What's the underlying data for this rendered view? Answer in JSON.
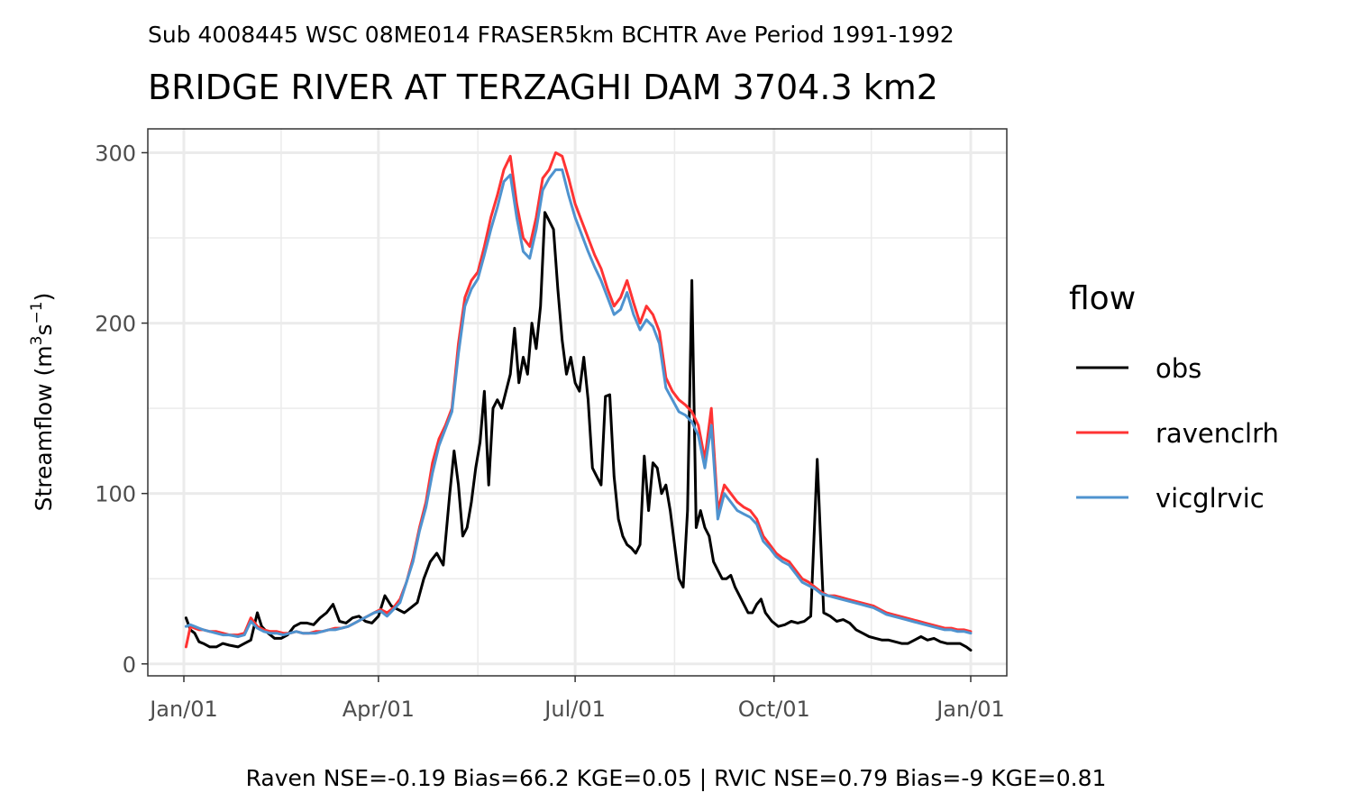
{
  "chart_data": {
    "type": "line",
    "subtitle": "Sub 4008445 WSC 08ME014 FRASER5km BCHTR Ave Period 1991-1992",
    "title": "BRIDGE RIVER AT TERZAGHI DAM 3704.3 km2",
    "ylabel_main": "Streamflow (m",
    "ylabel_sup1": "3",
    "ylabel_mid": "s",
    "ylabel_sup2": "−1",
    "ylabel_end": ")",
    "xlabel": "",
    "caption": "Raven NSE=-0.19 Bias=66.2 KGE=0.05 | RVIC NSE=0.79 Bias=-9 KGE=0.81",
    "x_type": "day_of_year",
    "xlim": [
      1,
      365
    ],
    "ylim": [
      -7,
      314
    ],
    "x_ticks": [
      {
        "label": "Jan/01",
        "day": 1
      },
      {
        "label": "Apr/01",
        "day": 91
      },
      {
        "label": "Jul/01",
        "day": 182
      },
      {
        "label": "Oct/01",
        "day": 274
      },
      {
        "label": "Jan/01",
        "day": 365
      }
    ],
    "x_minor_days": [
      46,
      137,
      228,
      319
    ],
    "y_ticks": [
      0,
      100,
      200,
      300
    ],
    "y_minor": [
      50,
      150,
      250
    ],
    "legend": {
      "title": "flow",
      "position": "right"
    },
    "grid": true,
    "series": [
      {
        "name": "obs",
        "color": "#000000",
        "x": [
          2,
          4,
          6,
          8,
          10,
          13,
          16,
          19,
          22,
          26,
          29,
          32,
          35,
          37,
          40,
          43,
          46,
          49,
          52,
          55,
          58,
          61,
          64,
          67,
          70,
          73,
          76,
          79,
          82,
          85,
          88,
          91,
          94,
          97,
          100,
          103,
          106,
          109,
          112,
          115,
          118,
          121,
          124,
          126,
          128,
          130,
          132,
          134,
          136,
          138,
          140,
          142,
          144,
          146,
          148,
          150,
          152,
          154,
          156,
          158,
          160,
          162,
          164,
          166,
          168,
          170,
          172,
          174,
          176,
          178,
          180,
          182,
          184,
          186,
          188,
          190,
          192,
          194,
          196,
          198,
          200,
          202,
          204,
          206,
          208,
          210,
          212,
          214,
          216,
          218,
          220,
          222,
          224,
          226,
          228,
          230,
          232,
          234,
          236,
          238,
          240,
          242,
          244,
          246,
          248,
          250,
          252,
          254,
          256,
          258,
          260,
          262,
          264,
          266,
          268,
          270,
          273,
          276,
          279,
          282,
          285,
          288,
          291,
          294,
          297,
          300,
          303,
          306,
          309,
          312,
          315,
          318,
          321,
          324,
          327,
          330,
          333,
          336,
          339,
          342,
          345,
          348,
          351,
          354,
          357,
          360,
          363,
          365
        ],
        "y": [
          27,
          20,
          18,
          13,
          12,
          10,
          10,
          12,
          11,
          10,
          12,
          14,
          30,
          22,
          18,
          15,
          15,
          17,
          22,
          24,
          24,
          23,
          27,
          30,
          35,
          25,
          24,
          27,
          28,
          25,
          24,
          28,
          40,
          34,
          32,
          30,
          33,
          36,
          50,
          60,
          65,
          58,
          100,
          125,
          105,
          75,
          80,
          95,
          115,
          130,
          160,
          105,
          150,
          155,
          150,
          160,
          170,
          197,
          165,
          180,
          170,
          200,
          185,
          210,
          265,
          260,
          255,
          220,
          190,
          170,
          180,
          165,
          160,
          180,
          155,
          115,
          110,
          105,
          157,
          158,
          110,
          85,
          75,
          70,
          68,
          65,
          70,
          122,
          90,
          118,
          115,
          100,
          105,
          90,
          70,
          50,
          45,
          90,
          225,
          80,
          90,
          80,
          75,
          60,
          55,
          50,
          50,
          52,
          45,
          40,
          35,
          30,
          30,
          35,
          38,
          30,
          25,
          22,
          23,
          25,
          24,
          25,
          28,
          120,
          30,
          28,
          25,
          26,
          24,
          20,
          18,
          16,
          15,
          14,
          14,
          13,
          12,
          12,
          14,
          16,
          14,
          15,
          13,
          12,
          12,
          12,
          10,
          8
        ]
      },
      {
        "name": "ravenclrh",
        "color": "#ff3333",
        "x": [
          2,
          4,
          6,
          8,
          10,
          13,
          16,
          19,
          22,
          26,
          29,
          32,
          35,
          38,
          41,
          44,
          47,
          50,
          53,
          56,
          59,
          62,
          65,
          68,
          71,
          74,
          77,
          80,
          83,
          86,
          89,
          92,
          95,
          98,
          101,
          104,
          107,
          110,
          113,
          116,
          119,
          122,
          125,
          128,
          131,
          134,
          137,
          140,
          143,
          146,
          149,
          152,
          155,
          158,
          161,
          164,
          167,
          170,
          173,
          176,
          179,
          182,
          185,
          188,
          191,
          194,
          197,
          200,
          203,
          206,
          209,
          212,
          215,
          218,
          221,
          224,
          227,
          230,
          233,
          236,
          239,
          242,
          245,
          248,
          251,
          254,
          257,
          260,
          263,
          266,
          269,
          272,
          275,
          278,
          281,
          284,
          287,
          290,
          293,
          296,
          299,
          302,
          305,
          308,
          311,
          314,
          317,
          320,
          323,
          326,
          329,
          332,
          335,
          338,
          341,
          344,
          347,
          350,
          353,
          356,
          359,
          362,
          365
        ],
        "y": [
          10,
          22,
          21,
          20,
          20,
          19,
          19,
          18,
          17,
          17,
          18,
          27,
          22,
          20,
          19,
          19,
          18,
          18,
          19,
          18,
          18,
          19,
          19,
          20,
          21,
          21,
          22,
          24,
          26,
          28,
          30,
          32,
          30,
          33,
          38,
          48,
          62,
          80,
          95,
          118,
          132,
          140,
          150,
          188,
          215,
          225,
          230,
          245,
          262,
          275,
          290,
          298,
          270,
          250,
          245,
          262,
          285,
          290,
          300,
          298,
          285,
          270,
          260,
          250,
          240,
          232,
          220,
          210,
          215,
          225,
          212,
          200,
          210,
          205,
          195,
          168,
          160,
          155,
          152,
          148,
          140,
          120,
          150,
          90,
          105,
          100,
          95,
          92,
          90,
          85,
          75,
          70,
          65,
          62,
          60,
          55,
          50,
          48,
          45,
          42,
          40,
          40,
          39,
          38,
          37,
          36,
          35,
          34,
          32,
          30,
          29,
          28,
          27,
          26,
          25,
          24,
          23,
          22,
          21,
          21,
          20,
          20,
          19
        ]
      },
      {
        "name": "vicglrvic",
        "color": "#4f93cf",
        "x": [
          2,
          4,
          6,
          8,
          10,
          13,
          16,
          19,
          22,
          26,
          29,
          32,
          35,
          38,
          41,
          44,
          47,
          50,
          53,
          56,
          59,
          62,
          65,
          68,
          71,
          74,
          77,
          80,
          83,
          86,
          89,
          92,
          95,
          98,
          101,
          104,
          107,
          110,
          113,
          116,
          119,
          122,
          125,
          128,
          131,
          134,
          137,
          140,
          143,
          146,
          149,
          152,
          155,
          158,
          161,
          164,
          167,
          170,
          173,
          176,
          179,
          182,
          185,
          188,
          191,
          194,
          197,
          200,
          203,
          206,
          209,
          212,
          215,
          218,
          221,
          224,
          227,
          230,
          233,
          236,
          239,
          242,
          245,
          248,
          251,
          254,
          257,
          260,
          263,
          266,
          269,
          272,
          275,
          278,
          281,
          284,
          287,
          290,
          293,
          296,
          299,
          302,
          305,
          308,
          311,
          314,
          317,
          320,
          323,
          326,
          329,
          332,
          335,
          338,
          341,
          344,
          347,
          350,
          353,
          356,
          359,
          362,
          365
        ],
        "y": [
          22,
          23,
          22,
          21,
          20,
          19,
          18,
          17,
          17,
          16,
          17,
          25,
          21,
          19,
          18,
          18,
          17,
          18,
          19,
          18,
          18,
          18,
          19,
          20,
          20,
          21,
          22,
          24,
          26,
          28,
          30,
          31,
          28,
          32,
          36,
          48,
          60,
          78,
          92,
          112,
          128,
          138,
          148,
          182,
          210,
          220,
          226,
          240,
          255,
          268,
          283,
          287,
          262,
          242,
          238,
          255,
          278,
          285,
          290,
          290,
          275,
          262,
          252,
          242,
          233,
          225,
          215,
          205,
          208,
          218,
          205,
          196,
          202,
          198,
          188,
          162,
          155,
          148,
          146,
          142,
          134,
          115,
          140,
          85,
          100,
          95,
          90,
          88,
          86,
          82,
          72,
          68,
          63,
          60,
          58,
          53,
          48,
          46,
          44,
          41,
          40,
          39,
          38,
          37,
          36,
          35,
          34,
          33,
          31,
          29,
          28,
          27,
          26,
          25,
          24,
          23,
          22,
          21,
          20,
          20,
          19,
          19,
          18
        ]
      }
    ]
  }
}
